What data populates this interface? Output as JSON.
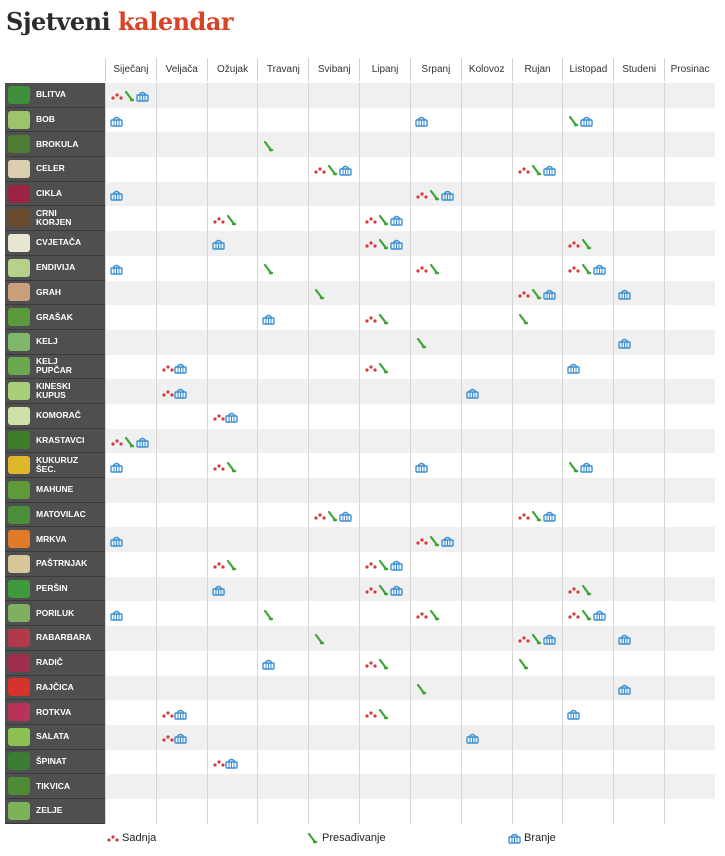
{
  "title": {
    "part1": "Sjetveni ",
    "part2": "kalendar"
  },
  "months": [
    "Siječanj",
    "Veljača",
    "Ožujak",
    "Travanj",
    "Svibanj",
    "Lipanj",
    "Srpanj",
    "Kolovoz",
    "Rujan",
    "Listopad",
    "Studeni",
    "Prosinac"
  ],
  "legend": {
    "sadnja": "Sadnja",
    "presadivanje": "Presađivanje",
    "branje": "Branje"
  },
  "colors": {
    "sadnja": "#d83a3a",
    "presadivanje": "#3fa535",
    "branje": "#3b8fd0",
    "row_label_bg": "#4f4f4f",
    "title_accent": "#d94224"
  },
  "vegetables": [
    {
      "name": "BLITVA",
      "thumb": "#3f8f3a",
      "cells": [
        [
          "S",
          "P",
          "B"
        ],
        [],
        [],
        [],
        [],
        [],
        [],
        [],
        [],
        [],
        [],
        []
      ]
    },
    {
      "name": "BOB",
      "thumb": "#9dc46a",
      "cells": [
        [
          "B"
        ],
        [],
        [],
        [],
        [],
        [],
        [
          "B"
        ],
        [],
        [],
        [
          "P",
          "B"
        ],
        [],
        []
      ]
    },
    {
      "name": "BROKULA",
      "thumb": "#4d7d33",
      "cells": [
        [],
        [],
        [],
        [
          "P"
        ],
        [],
        [],
        [],
        [],
        [],
        [],
        [],
        []
      ]
    },
    {
      "name": "CELER",
      "thumb": "#d9cfb0",
      "cells": [
        [],
        [],
        [],
        [],
        [
          "S",
          "P",
          "B"
        ],
        [],
        [],
        [],
        [
          "S",
          "P",
          "B"
        ],
        [],
        [],
        []
      ]
    },
    {
      "name": "CIKLA",
      "thumb": "#9a2441",
      "cells": [
        [
          "B"
        ],
        [],
        [],
        [],
        [],
        [],
        [
          "S",
          "P",
          "B"
        ],
        [],
        [],
        [],
        [],
        []
      ]
    },
    {
      "name": "CRNI\nKORJEN",
      "thumb": "#6b4a2e",
      "cells": [
        [],
        [],
        [
          "S",
          "P"
        ],
        [],
        [],
        [
          "S",
          "P",
          "B"
        ],
        [],
        [],
        [],
        [],
        [],
        []
      ]
    },
    {
      "name": "CVJETAČA",
      "thumb": "#e8e6d2",
      "cells": [
        [],
        [],
        [
          "B"
        ],
        [],
        [],
        [
          "S",
          "P",
          "B"
        ],
        [],
        [],
        [],
        [
          "S",
          "P"
        ],
        [],
        []
      ]
    },
    {
      "name": "ENDIVIJA",
      "thumb": "#b7d08a",
      "cells": [
        [
          "B"
        ],
        [],
        [],
        [
          "P"
        ],
        [],
        [],
        [
          "S",
          "P"
        ],
        [],
        [],
        [
          "S",
          "P",
          "B"
        ],
        [],
        []
      ]
    },
    {
      "name": "GRAH",
      "thumb": "#c9a07a",
      "cells": [
        [],
        [],
        [],
        [],
        [
          "P"
        ],
        [],
        [],
        [],
        [
          "S",
          "P",
          "B"
        ],
        [],
        [
          "B"
        ],
        []
      ]
    },
    {
      "name": "GRAŠAK",
      "thumb": "#5b9a3c",
      "cells": [
        [],
        [],
        [],
        [
          "B"
        ],
        [],
        [
          "S",
          "P"
        ],
        [],
        [],
        [
          "P"
        ],
        [],
        [],
        []
      ]
    },
    {
      "name": "KELJ",
      "thumb": "#7fb86b",
      "cells": [
        [],
        [],
        [],
        [],
        [],
        [],
        [
          "P"
        ],
        [],
        [],
        [],
        [
          "B"
        ],
        []
      ]
    },
    {
      "name": "KELJ\nPUPČAR",
      "thumb": "#6aa84f",
      "cells": [
        [],
        [
          "S",
          "B"
        ],
        [],
        [],
        [],
        [
          "S",
          "P"
        ],
        [],
        [],
        [],
        [
          "B"
        ],
        [],
        []
      ]
    },
    {
      "name": "KINESKI\nKUPUS",
      "thumb": "#a8cf7a",
      "cells": [
        [],
        [
          "S",
          "B"
        ],
        [],
        [],
        [],
        [],
        [],
        [
          "B"
        ],
        [],
        [],
        [],
        []
      ]
    },
    {
      "name": "KOMORAČ",
      "thumb": "#cfe0a8",
      "cells": [
        [],
        [],
        [
          "S",
          "B"
        ],
        [],
        [],
        [],
        [],
        [],
        [],
        [],
        [],
        []
      ]
    },
    {
      "name": "KRASTAVCI",
      "thumb": "#3e7d2c",
      "cells": [
        [
          "S",
          "P",
          "B"
        ],
        [],
        [],
        [],
        [],
        [],
        [],
        [],
        [],
        [],
        [],
        []
      ]
    },
    {
      "name": "KUKURUZ\nŠEC.",
      "thumb": "#e0b72c",
      "cells": [
        [
          "B"
        ],
        [],
        [
          "S",
          "P"
        ],
        [],
        [],
        [],
        [
          "B"
        ],
        [],
        [],
        [
          "P",
          "B"
        ],
        [],
        []
      ]
    },
    {
      "name": "MAHUNE",
      "thumb": "#5f9a3a",
      "cells": [
        [],
        [],
        [],
        [],
        [],
        [],
        [],
        [],
        [],
        [],
        [],
        []
      ]
    },
    {
      "name": "MATOVILAC",
      "thumb": "#4c8f3a",
      "cells": [
        [],
        [],
        [],
        [],
        [
          "S",
          "P",
          "B"
        ],
        [],
        [],
        [],
        [
          "S",
          "P",
          "B"
        ],
        [],
        [],
        []
      ]
    },
    {
      "name": "MRKVA",
      "thumb": "#e07a26",
      "cells": [
        [
          "B"
        ],
        [],
        [],
        [],
        [],
        [],
        [
          "S",
          "P",
          "B"
        ],
        [],
        [],
        [],
        [],
        []
      ]
    },
    {
      "name": "PAŠTRNJAK",
      "thumb": "#d8c79a",
      "cells": [
        [],
        [],
        [
          "S",
          "P"
        ],
        [],
        [],
        [
          "S",
          "P",
          "B"
        ],
        [],
        [],
        [],
        [],
        [],
        []
      ]
    },
    {
      "name": "PERŠIN",
      "thumb": "#3f9a3f",
      "cells": [
        [],
        [],
        [
          "B"
        ],
        [],
        [],
        [
          "S",
          "P",
          "B"
        ],
        [],
        [],
        [],
        [
          "S",
          "P"
        ],
        [],
        []
      ]
    },
    {
      "name": "PORILUK",
      "thumb": "#7fb060",
      "cells": [
        [
          "B"
        ],
        [],
        [],
        [
          "P"
        ],
        [],
        [],
        [
          "S",
          "P"
        ],
        [],
        [],
        [
          "S",
          "P",
          "B"
        ],
        [],
        []
      ]
    },
    {
      "name": "RABARBARA",
      "thumb": "#b23a48",
      "cells": [
        [],
        [],
        [],
        [],
        [
          "P"
        ],
        [],
        [],
        [],
        [
          "S",
          "P",
          "B"
        ],
        [],
        [
          "B"
        ],
        []
      ]
    },
    {
      "name": "RADIČ",
      "thumb": "#a0304a",
      "cells": [
        [],
        [],
        [],
        [
          "B"
        ],
        [],
        [
          "S",
          "P"
        ],
        [],
        [],
        [
          "P"
        ],
        [],
        [],
        []
      ]
    },
    {
      "name": "RAJČICA",
      "thumb": "#d8332a",
      "cells": [
        [],
        [],
        [],
        [],
        [],
        [],
        [
          "P"
        ],
        [],
        [],
        [],
        [
          "B"
        ],
        []
      ]
    },
    {
      "name": "ROTKVA",
      "thumb": "#b8335a",
      "cells": [
        [],
        [
          "S",
          "B"
        ],
        [],
        [],
        [],
        [
          "S",
          "P"
        ],
        [],
        [],
        [],
        [
          "B"
        ],
        [],
        []
      ]
    },
    {
      "name": "SALATA",
      "thumb": "#8cc152",
      "cells": [
        [],
        [
          "S",
          "B"
        ],
        [],
        [],
        [],
        [],
        [],
        [
          "B"
        ],
        [],
        [],
        [],
        []
      ]
    },
    {
      "name": "ŠPINAT",
      "thumb": "#3a7d33",
      "cells": [
        [],
        [],
        [
          "S",
          "B"
        ],
        [],
        [],
        [],
        [],
        [],
        [],
        [],
        [],
        []
      ]
    },
    {
      "name": "TIKVICA",
      "thumb": "#4f8a34",
      "cells": [
        [],
        [],
        [],
        [],
        [],
        [],
        [],
        [],
        [],
        [],
        [],
        []
      ]
    },
    {
      "name": "ZELJE",
      "thumb": "#7cb35a",
      "cells": [
        [],
        [],
        [],
        [],
        [],
        [],
        [],
        [],
        [],
        [],
        [],
        []
      ]
    }
  ]
}
